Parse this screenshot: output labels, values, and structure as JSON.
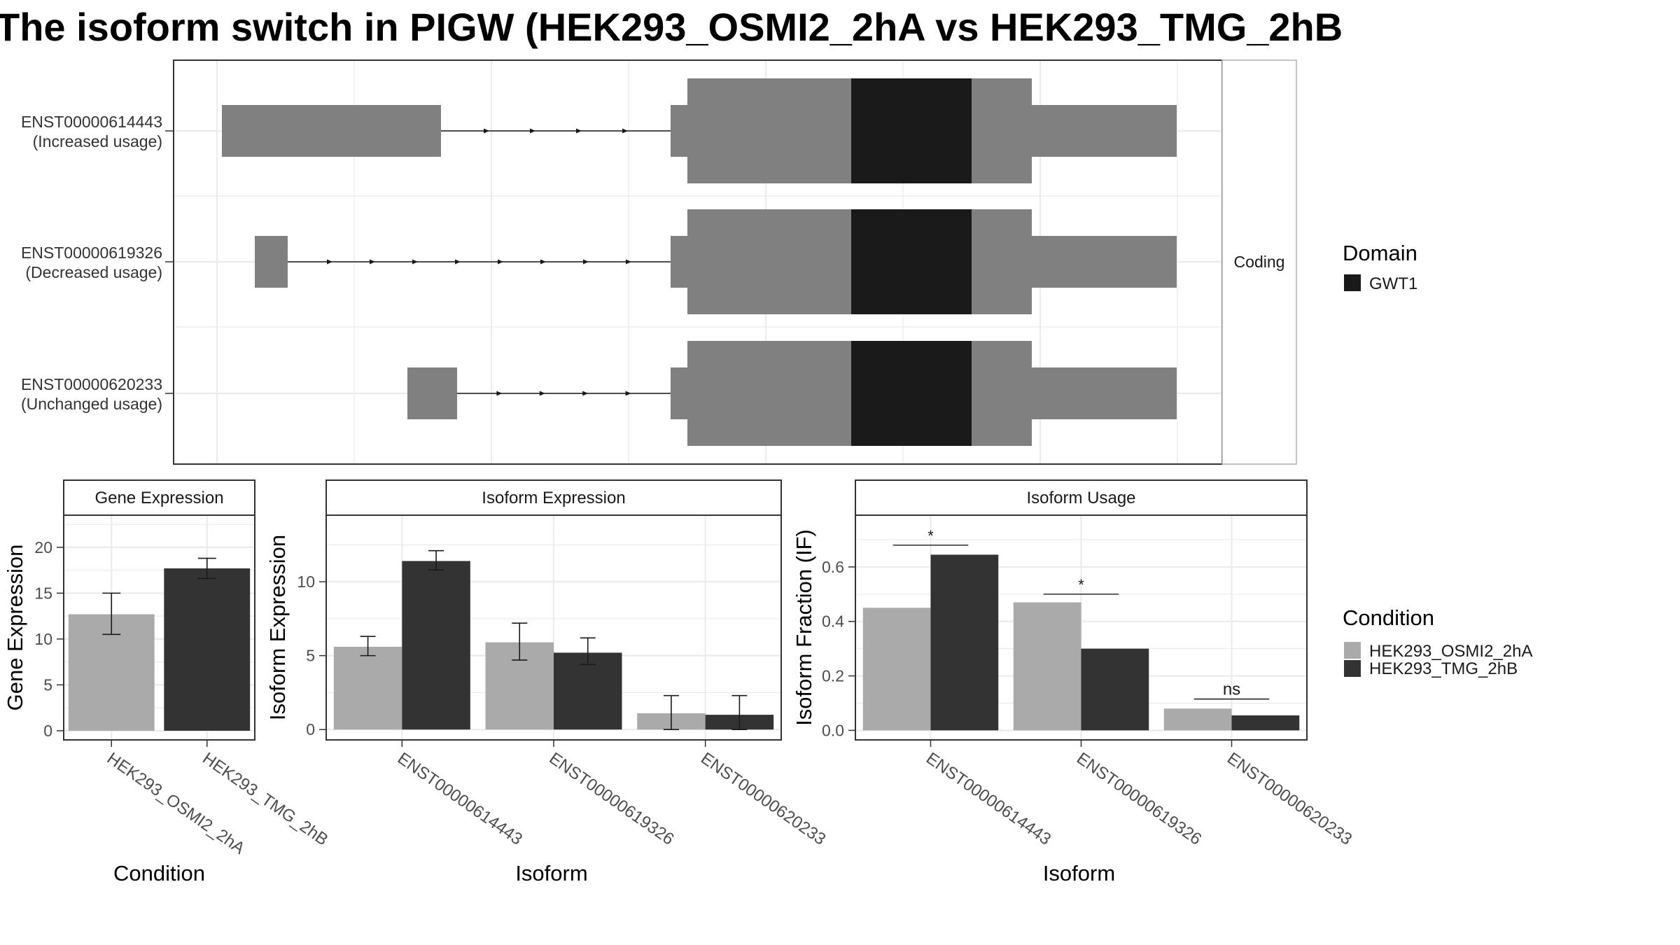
{
  "title": "The isoform switch in PIGW (HEK293_OSMI2_2hA vs HEK293_TMG_2hB",
  "colors": {
    "condition_a": "#aaaaaa",
    "condition_b": "#333333",
    "exon": "#808080",
    "domain": "#1a1a1a",
    "grid": "#ebebeb",
    "strip_bg": "#ffffff"
  },
  "chart_data": [
    {
      "type": "gene-structure",
      "strip_label": "Coding",
      "isoforms": [
        {
          "id": "ENST00000614443",
          "usage": "(Increased usage)"
        },
        {
          "id": "ENST00000619326",
          "usage": "(Decreased usage)"
        },
        {
          "id": "ENST00000620233",
          "usage": "(Unchanged usage)"
        }
      ],
      "legend": {
        "title": "Domain",
        "items": [
          "GWT1"
        ]
      }
    },
    {
      "type": "bar",
      "panel_title": "Gene Expression",
      "xlabel": "Condition",
      "ylabel": "Gene Expression",
      "categories": [
        "HEK293_OSMI2_2hA",
        "HEK293_TMG_2hB"
      ],
      "values": [
        12.7,
        17.7
      ],
      "errors": [
        [
          10.5,
          15.0
        ],
        [
          16.6,
          18.8
        ]
      ],
      "ylim": [
        -1,
        23.5
      ],
      "yticks": [
        0,
        5,
        10,
        15,
        20
      ],
      "ytick_labels": [
        "0",
        "5",
        "10",
        "15",
        "20"
      ]
    },
    {
      "type": "bar",
      "panel_title": "Isoform Expression",
      "xlabel": "Isoform",
      "ylabel": "Isoform Expression",
      "categories": [
        "ENST00000614443",
        "ENST00000619326",
        "ENST00000620233"
      ],
      "series": [
        {
          "name": "HEK293_OSMI2_2hA",
          "values": [
            5.6,
            5.9,
            1.1
          ],
          "errors": [
            [
              5.0,
              6.3
            ],
            [
              4.7,
              7.2
            ],
            [
              0.0,
              2.3
            ]
          ]
        },
        {
          "name": "HEK293_TMG_2hB",
          "values": [
            11.4,
            5.2,
            1.0
          ],
          "errors": [
            [
              10.8,
              12.1
            ],
            [
              4.4,
              6.2
            ],
            [
              0.0,
              2.3
            ]
          ]
        }
      ],
      "ylim": [
        -0.7,
        14.5
      ],
      "yticks": [
        0,
        5,
        10
      ],
      "ytick_labels": [
        "0",
        "5",
        "10"
      ]
    },
    {
      "type": "bar",
      "panel_title": "Isoform Usage",
      "xlabel": "Isoform",
      "ylabel": "Isoform Fraction (IF)",
      "categories": [
        "ENST00000614443",
        "ENST00000619326",
        "ENST00000620233"
      ],
      "series": [
        {
          "name": "HEK293_OSMI2_2hA",
          "values": [
            0.45,
            0.47,
            0.08
          ]
        },
        {
          "name": "HEK293_TMG_2hB",
          "values": [
            0.645,
            0.3,
            0.055
          ]
        }
      ],
      "significance": [
        {
          "label": "*",
          "y": 0.68
        },
        {
          "label": "*",
          "y": 0.5
        },
        {
          "label": "ns",
          "y": 0.115
        }
      ],
      "ylim": [
        -0.035,
        0.79
      ],
      "yticks": [
        0.0,
        0.2,
        0.4,
        0.6
      ],
      "ytick_labels": [
        "0.0",
        "0.2",
        "0.4",
        "0.6"
      ]
    }
  ],
  "condition_legend": {
    "title": "Condition",
    "items": [
      "HEK293_OSMI2_2hA",
      "HEK293_TMG_2hB"
    ]
  }
}
